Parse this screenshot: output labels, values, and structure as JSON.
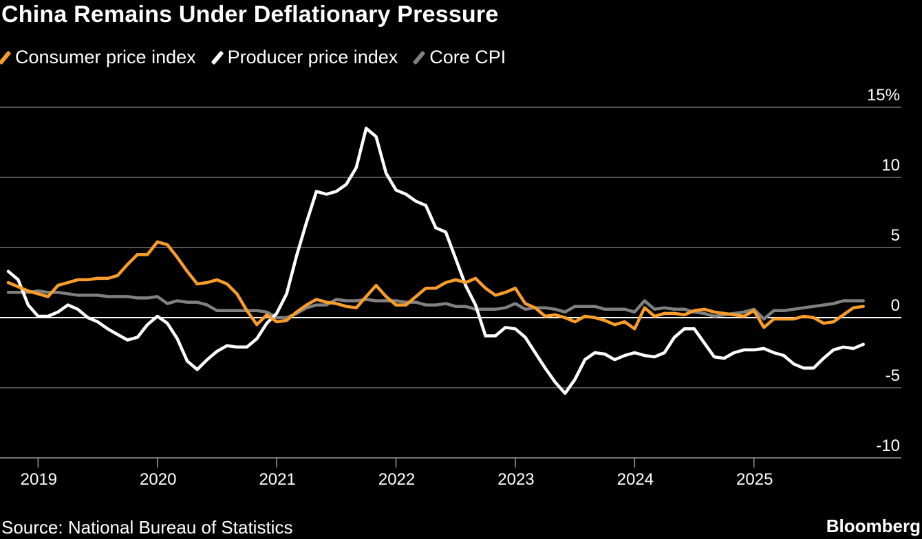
{
  "chart_data": {
    "type": "line",
    "title": "China Remains Under Deflationary Pressure",
    "x_start": "2018-10",
    "x_end": "2025-12",
    "x_frequency": "monthly",
    "x_tick_labels": [
      "2019",
      "2020",
      "2021",
      "2022",
      "2023",
      "2024",
      "2025"
    ],
    "y_tick_labels": [
      "15%",
      "10",
      "5",
      "0",
      "-5",
      "-10"
    ],
    "y_ticks": [
      15,
      10,
      5,
      0,
      -5,
      -10
    ],
    "ylim": [
      -10,
      15
    ],
    "grid": true,
    "legend_placement": "top-left",
    "series": [
      {
        "name": "Consumer price index",
        "color": "#f99d2a",
        "values": [
          2.5,
          2.2,
          1.9,
          1.7,
          1.5,
          2.3,
          2.5,
          2.7,
          2.7,
          2.8,
          2.8,
          3.0,
          3.8,
          4.5,
          4.5,
          5.4,
          5.2,
          4.3,
          3.3,
          2.4,
          2.5,
          2.7,
          2.4,
          1.7,
          0.5,
          -0.5,
          0.2,
          -0.3,
          -0.2,
          0.4,
          0.9,
          1.3,
          1.1,
          1.0,
          0.8,
          0.7,
          1.5,
          2.3,
          1.5,
          0.9,
          0.9,
          1.5,
          2.1,
          2.1,
          2.5,
          2.7,
          2.5,
          2.8,
          2.1,
          1.6,
          1.8,
          2.1,
          1.0,
          0.7,
          0.1,
          0.2,
          0.0,
          -0.3,
          0.1,
          0.0,
          -0.2,
          -0.5,
          -0.3,
          -0.8,
          0.7,
          0.1,
          0.3,
          0.3,
          0.2,
          0.5,
          0.6,
          0.4,
          0.3,
          0.2,
          0.1,
          0.5,
          -0.7,
          -0.1,
          -0.1,
          -0.1,
          0.1,
          0.0,
          -0.4,
          -0.3,
          0.2,
          0.7,
          0.8
        ]
      },
      {
        "name": "Producer price index",
        "color": "#ffffff",
        "values": [
          3.3,
          2.7,
          0.9,
          0.1,
          0.1,
          0.4,
          0.9,
          0.6,
          0.0,
          -0.3,
          -0.8,
          -1.2,
          -1.6,
          -1.4,
          -0.5,
          0.1,
          -0.4,
          -1.5,
          -3.1,
          -3.7,
          -3.0,
          -2.4,
          -2.0,
          -2.1,
          -2.1,
          -1.5,
          -0.4,
          0.3,
          1.7,
          4.4,
          6.8,
          9.0,
          8.8,
          9.0,
          9.5,
          10.7,
          13.5,
          12.9,
          10.3,
          9.1,
          8.8,
          8.3,
          8.0,
          6.4,
          6.1,
          4.2,
          2.3,
          0.9,
          -1.3,
          -1.3,
          -0.7,
          -0.8,
          -1.4,
          -2.5,
          -3.6,
          -4.6,
          -5.4,
          -4.4,
          -3.0,
          -2.5,
          -2.6,
          -3.0,
          -2.7,
          -2.5,
          -2.7,
          -2.8,
          -2.5,
          -1.4,
          -0.8,
          -0.8,
          -1.8,
          -2.8,
          -2.9,
          -2.5,
          -2.3,
          -2.3,
          -2.2,
          -2.5,
          -2.7,
          -3.3,
          -3.6,
          -3.6,
          -2.9,
          -2.3,
          -2.1,
          -2.2,
          -1.9
        ]
      },
      {
        "name": "Core CPI",
        "color": "#808080",
        "values": [
          1.8,
          1.8,
          1.8,
          1.9,
          1.8,
          1.8,
          1.7,
          1.6,
          1.6,
          1.6,
          1.5,
          1.5,
          1.5,
          1.4,
          1.4,
          1.5,
          1.0,
          1.2,
          1.1,
          1.1,
          0.9,
          0.5,
          0.5,
          0.5,
          0.5,
          0.5,
          0.4,
          0.0,
          0.0,
          0.3,
          0.7,
          0.9,
          0.9,
          1.3,
          1.2,
          1.2,
          1.3,
          1.2,
          1.2,
          1.2,
          1.1,
          1.1,
          0.9,
          0.9,
          1.0,
          0.8,
          0.8,
          0.6,
          0.6,
          0.6,
          0.7,
          1.0,
          0.6,
          0.7,
          0.7,
          0.6,
          0.4,
          0.8,
          0.8,
          0.8,
          0.6,
          0.6,
          0.6,
          0.4,
          1.2,
          0.6,
          0.7,
          0.6,
          0.6,
          0.4,
          0.3,
          0.1,
          0.2,
          0.3,
          0.4,
          0.6,
          -0.1,
          0.5,
          0.5,
          0.6,
          0.7,
          0.8,
          0.9,
          1.0,
          1.2,
          1.2,
          1.2
        ]
      }
    ]
  },
  "footer": {
    "source": "Source: National Bureau of Statistics",
    "brand": "Bloomberg"
  }
}
